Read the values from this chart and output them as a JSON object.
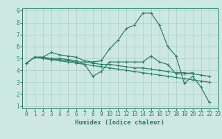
{
  "title": "",
  "xlabel": "Humidex (Indice chaleur)",
  "bg_color": "#cce8e0",
  "grid_color": "#aaccC4",
  "line_color": "#2e7d6e",
  "xlim": [
    -0.5,
    23
  ],
  "ylim": [
    0.8,
    9.2
  ],
  "xticks": [
    0,
    1,
    2,
    3,
    4,
    5,
    6,
    7,
    8,
    9,
    10,
    11,
    12,
    13,
    14,
    15,
    16,
    17,
    18,
    19,
    20,
    21,
    22,
    23
  ],
  "yticks": [
    1,
    2,
    3,
    4,
    5,
    6,
    7,
    8,
    9
  ],
  "series": [
    [
      4.6,
      5.1,
      5.1,
      5.5,
      5.3,
      5.2,
      5.1,
      4.8,
      4.7,
      4.8,
      5.8,
      6.5,
      7.5,
      7.8,
      8.8,
      8.8,
      7.8,
      6.0,
      5.2,
      2.9,
      3.5,
      2.6,
      1.3,
      null
    ],
    [
      4.6,
      5.1,
      5.1,
      5.0,
      5.0,
      4.9,
      4.8,
      4.5,
      3.5,
      3.9,
      4.7,
      4.7,
      4.7,
      4.7,
      4.7,
      5.2,
      4.7,
      4.5,
      3.7,
      3.7,
      3.8,
      null,
      null,
      null
    ],
    [
      4.6,
      5.1,
      5.0,
      4.9,
      4.8,
      4.7,
      4.6,
      4.5,
      4.4,
      4.3,
      4.2,
      4.1,
      4.0,
      3.9,
      3.8,
      3.7,
      3.6,
      3.5,
      3.4,
      3.3,
      3.2,
      3.1,
      3.0,
      null
    ],
    [
      4.6,
      5.1,
      5.0,
      4.9,
      4.9,
      4.8,
      4.7,
      4.7,
      4.6,
      4.5,
      4.5,
      4.4,
      4.3,
      4.2,
      4.2,
      4.1,
      4.0,
      3.9,
      3.8,
      3.8,
      3.7,
      3.6,
      3.5,
      null
    ]
  ],
  "tick_fontsize": 5.5,
  "xlabel_fontsize": 6.5,
  "marker_size": 3.0,
  "linewidth": 0.9
}
